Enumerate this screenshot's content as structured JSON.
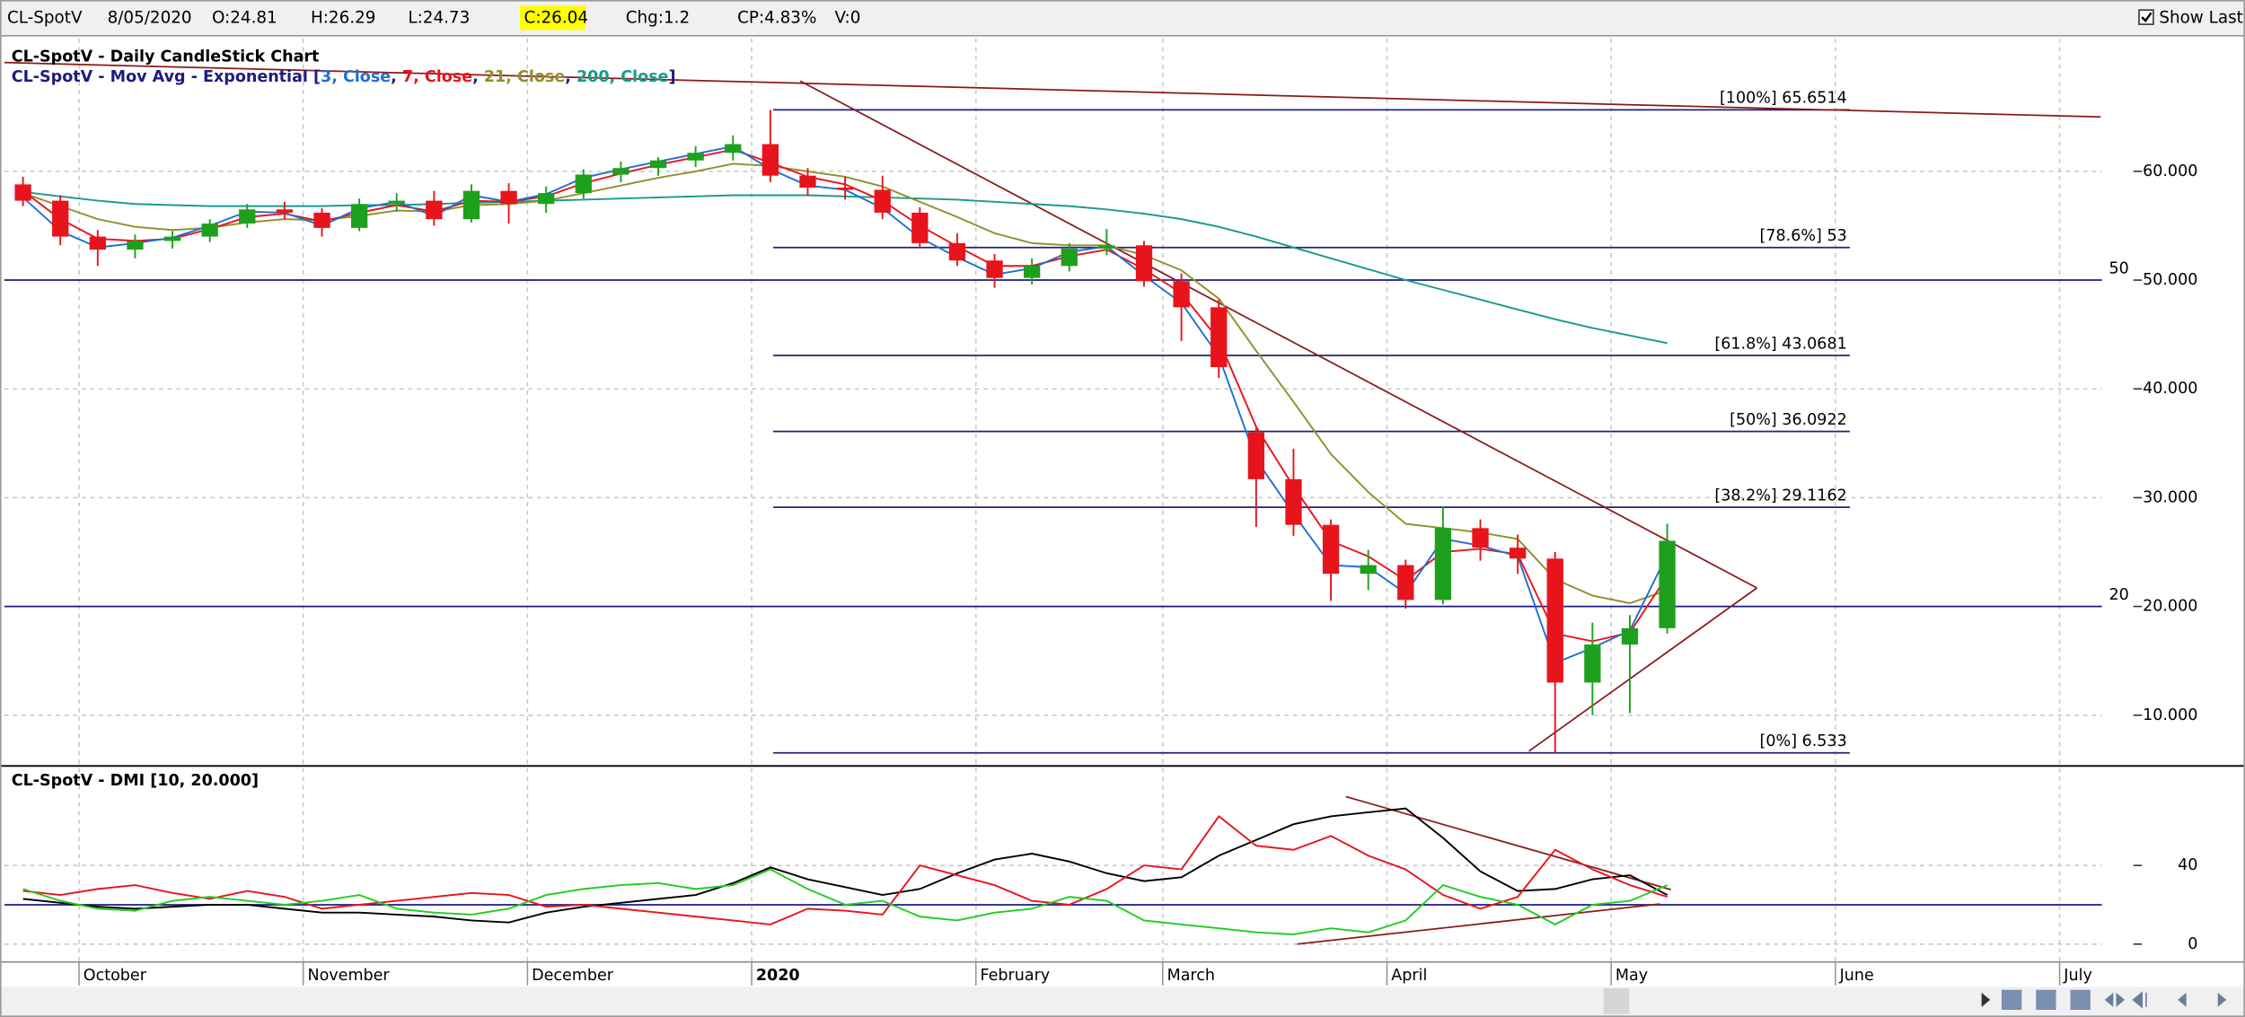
{
  "toolbar": {
    "symbol": "CL-SpotV",
    "date": "8/05/2020",
    "open": "O:24.81",
    "high": "H:26.29",
    "low": "L:24.73",
    "close": "C:26.04",
    "change": "Chg:1.2",
    "change_pct": "CP:4.83%",
    "volume": "V:0",
    "show_last": "Show Last"
  },
  "chart_data": [
    {
      "type": "candlestick",
      "title": "CL-SpotV - Daily CandleStick Chart",
      "legend_prefix": "CL-SpotV - Mov Avg - Exponential [",
      "legend_separator": ", ",
      "legend_suffix": "]",
      "categories": [
        null,
        null,
        "October",
        null,
        null,
        null,
        null,
        null,
        "November",
        null,
        null,
        null,
        null,
        null,
        "December",
        null,
        null,
        null,
        null,
        null,
        "2020",
        null,
        null,
        null,
        null,
        null,
        "February",
        null,
        null,
        null,
        null,
        "March",
        null,
        null,
        null,
        null,
        null,
        "April",
        null,
        null,
        null,
        null,
        null,
        "May",
        null,
        null,
        null,
        null,
        null,
        "June",
        null,
        null,
        null,
        null,
        null,
        "July"
      ],
      "open": [
        58.8,
        57.3,
        54.0,
        52.8,
        53.6,
        54.0,
        55.2,
        56.5,
        56.2,
        54.8,
        57.0,
        57.3,
        55.6,
        58.2,
        57.0,
        58.0,
        59.7,
        60.3,
        61.0,
        61.7,
        62.5,
        59.6,
        58.5,
        58.3,
        56.2,
        53.4,
        51.8,
        50.2,
        51.3,
        52.9,
        53.2,
        49.9,
        47.5,
        36.0,
        31.7,
        27.5,
        23.0,
        23.8,
        20.6,
        27.2,
        25.4,
        24.4,
        13.0,
        16.5,
        18.0,
        null,
        null,
        null,
        null,
        null,
        null,
        null,
        null,
        null,
        null,
        null
      ],
      "high": [
        59.5,
        57.8,
        54.6,
        54.2,
        54.5,
        55.6,
        57.0,
        57.2,
        56.6,
        57.5,
        58.0,
        58.2,
        58.8,
        58.9,
        58.6,
        60.2,
        60.9,
        61.3,
        62.3,
        63.3,
        65.65,
        60.3,
        59.5,
        59.6,
        56.7,
        54.3,
        52.4,
        52.0,
        53.4,
        54.7,
        53.6,
        50.6,
        48.2,
        36.4,
        34.5,
        28.0,
        25.2,
        24.3,
        29.2,
        28.0,
        26.6,
        25.0,
        18.5,
        19.2,
        27.6,
        null,
        null,
        null,
        null,
        null,
        null,
        null,
        null,
        null,
        null,
        null
      ],
      "low": [
        56.8,
        53.2,
        51.3,
        52.0,
        52.9,
        53.5,
        54.8,
        55.6,
        54.0,
        54.5,
        56.3,
        55.0,
        55.3,
        55.2,
        56.2,
        57.5,
        59.0,
        59.6,
        60.4,
        61.0,
        59.0,
        57.8,
        57.4,
        55.6,
        53.0,
        51.3,
        49.3,
        49.6,
        50.8,
        52.3,
        49.4,
        44.4,
        41.0,
        27.3,
        26.5,
        20.5,
        21.5,
        19.8,
        20.2,
        24.2,
        23.0,
        6.533,
        10.0,
        10.2,
        17.5,
        null,
        null,
        null,
        null,
        null,
        null,
        null,
        null,
        null,
        null,
        null
      ],
      "close": [
        57.3,
        54.0,
        52.8,
        53.6,
        54.0,
        55.2,
        56.5,
        56.2,
        54.8,
        57.0,
        57.3,
        55.6,
        58.2,
        57.0,
        58.0,
        59.7,
        60.3,
        61.0,
        61.7,
        62.5,
        59.6,
        58.5,
        58.3,
        56.2,
        53.4,
        51.8,
        50.2,
        51.3,
        52.9,
        53.2,
        49.9,
        47.5,
        42.0,
        31.7,
        27.5,
        23.0,
        23.8,
        20.6,
        27.2,
        25.4,
        24.4,
        13.0,
        16.5,
        18.0,
        26.04,
        null,
        null,
        null,
        null,
        null,
        null,
        null,
        null,
        null,
        null,
        null
      ],
      "up_color": "#1ea01e",
      "down_color": "#e8141c",
      "series": [
        {
          "name": "3, Close",
          "color": "#1f6fd1",
          "values": [
            57.6,
            54.5,
            53.0,
            53.4,
            53.9,
            55.0,
            56.3,
            56.2,
            55.0,
            56.6,
            57.2,
            55.9,
            57.8,
            57.2,
            57.9,
            59.4,
            60.2,
            60.9,
            61.6,
            62.3,
            60.2,
            58.7,
            58.3,
            56.6,
            53.9,
            52.1,
            50.5,
            51.1,
            52.6,
            53.1,
            50.4,
            47.9,
            43.0,
            33.5,
            28.5,
            23.8,
            23.6,
            21.2,
            26.2,
            25.6,
            24.6,
            14.8,
            16.2,
            17.8,
            24.8,
            null,
            null,
            null,
            null,
            null,
            null,
            null,
            null,
            null,
            null,
            null
          ]
        },
        {
          "name": "7, Close",
          "color": "#e8141c",
          "values": [
            58.2,
            55.6,
            53.8,
            53.6,
            53.8,
            54.7,
            55.8,
            56.1,
            55.4,
            56.2,
            56.9,
            56.3,
            57.3,
            57.2,
            57.7,
            58.9,
            59.8,
            60.6,
            61.3,
            62.0,
            60.8,
            59.5,
            58.8,
            57.3,
            55.0,
            53.1,
            51.3,
            51.3,
            52.2,
            52.8,
            51.0,
            48.8,
            44.5,
            36.5,
            31.0,
            26.0,
            24.6,
            22.4,
            25.0,
            25.3,
            24.8,
            17.5,
            16.8,
            17.6,
            22.8,
            null,
            null,
            null,
            null,
            null,
            null,
            null,
            null,
            null,
            null,
            null
          ]
        },
        {
          "name": "21, Close",
          "color": "#8f8f2e",
          "values": [
            58.0,
            56.8,
            55.6,
            54.9,
            54.6,
            54.8,
            55.3,
            55.6,
            55.5,
            55.9,
            56.4,
            56.3,
            56.9,
            57.0,
            57.3,
            58.0,
            58.7,
            59.4,
            60.0,
            60.7,
            60.5,
            60.0,
            59.5,
            58.6,
            57.2,
            55.8,
            54.3,
            53.4,
            53.2,
            53.2,
            52.3,
            50.9,
            48.3,
            43.5,
            38.8,
            34.0,
            30.5,
            27.6,
            27.2,
            26.8,
            26.2,
            22.5,
            21.0,
            20.3,
            21.5,
            null,
            null,
            null,
            null,
            null,
            null,
            null,
            null,
            null,
            null,
            null
          ]
        },
        {
          "name": "200, Close",
          "color": "#1a9a8a",
          "values": [
            58.1,
            57.7,
            57.3,
            57.0,
            56.9,
            56.8,
            56.8,
            56.8,
            56.8,
            56.9,
            56.9,
            57.0,
            57.1,
            57.2,
            57.3,
            57.4,
            57.5,
            57.6,
            57.7,
            57.8,
            57.8,
            57.8,
            57.7,
            57.6,
            57.5,
            57.4,
            57.2,
            57.0,
            56.8,
            56.5,
            56.1,
            55.6,
            54.9,
            54.0,
            53.0,
            52.0,
            51.0,
            50.0,
            49.1,
            48.2,
            47.3,
            46.4,
            45.6,
            44.9,
            44.2,
            null,
            null,
            null,
            null,
            null,
            null,
            null,
            null,
            null,
            null,
            null
          ]
        }
      ],
      "ylim": [
        5.4,
        72.2
      ],
      "yticks": [
        {
          "value": 10,
          "label": "10.000"
        },
        {
          "value": 20,
          "label": "20.000"
        },
        {
          "value": 30,
          "label": "30.000"
        },
        {
          "value": 40,
          "label": "40.000"
        },
        {
          "value": 50,
          "label": "50.000"
        },
        {
          "value": 60,
          "label": "60.000"
        }
      ],
      "grid": true,
      "hlines": [
        50,
        20
      ],
      "hline_labels": true,
      "hline_color": "#1c1c80",
      "fibonacci": [
        {
          "value": 65.6514,
          "label": "[100%] 65.6514"
        },
        {
          "value": 53,
          "label": "[78.6%] 53"
        },
        {
          "value": 43.0681,
          "label": "[61.8%] 43.0681"
        },
        {
          "value": 36.0922,
          "label": "[50%] 36.0922"
        },
        {
          "value": 29.1162,
          "label": "[38.2%] 29.1162"
        },
        {
          "value": 6.533,
          "label": "[0%] 6.533"
        }
      ],
      "fib_color": "#22227a",
      "trendlines": [
        {
          "values": [
            70.0,
            65.0
          ]
        },
        {
          "values": [
            68.3,
            21.7
          ]
        },
        {
          "values": [
            6.7,
            21.7
          ]
        }
      ],
      "trendline_color": "#8b1a1a"
    },
    {
      "type": "line",
      "title": "CL-SpotV - DMI [10, 20.000]",
      "series": [
        {
          "color": "#000000",
          "values": [
            23,
            21,
            19,
            18,
            19,
            20,
            20,
            18,
            16,
            16,
            15,
            14,
            12,
            11,
            16,
            19,
            21,
            23,
            25,
            31,
            39,
            33,
            29,
            25,
            28,
            36,
            43,
            46,
            42,
            36,
            32,
            34,
            45,
            53,
            61,
            65,
            67,
            69,
            54,
            37,
            27,
            28,
            33,
            35,
            25,
            null,
            null,
            null,
            null,
            null,
            null,
            null,
            null,
            null,
            null,
            null
          ]
        },
        {
          "color": "#e8141c",
          "values": [
            27,
            25,
            28,
            30,
            26,
            23,
            27,
            24,
            18,
            20,
            22,
            24,
            26,
            25,
            19,
            20,
            18,
            16,
            14,
            12,
            10,
            18,
            17,
            15,
            40,
            35,
            30,
            22,
            20,
            28,
            40,
            38,
            65,
            50,
            48,
            55,
            45,
            38,
            25,
            18,
            24,
            48,
            38,
            30,
            24,
            null,
            null,
            null,
            null,
            null,
            null,
            null,
            null,
            null,
            null,
            null
          ]
        },
        {
          "color": "#22cc22",
          "values": [
            28,
            22,
            18,
            17,
            22,
            24,
            22,
            20,
            22,
            25,
            18,
            16,
            15,
            18,
            25,
            28,
            30,
            31,
            28,
            30,
            38,
            28,
            20,
            22,
            14,
            12,
            16,
            18,
            24,
            22,
            12,
            10,
            8,
            6,
            5,
            8,
            6,
            12,
            30,
            24,
            20,
            10,
            20,
            22,
            30,
            null,
            null,
            null,
            null,
            null,
            null,
            null,
            null,
            null,
            null,
            null
          ]
        }
      ],
      "ylim": [
        -8.7,
        89.5
      ],
      "yticks": [
        0,
        40
      ],
      "grid": true,
      "hlines": [
        20
      ],
      "hline_labels": false,
      "hline_color": "#1c1c80",
      "trendlines": [
        {
          "values": [
            75,
            27.7
          ]
        },
        {
          "values": [
            0,
            20.4
          ]
        }
      ],
      "trendline_color": "#8b1a1a"
    }
  ]
}
